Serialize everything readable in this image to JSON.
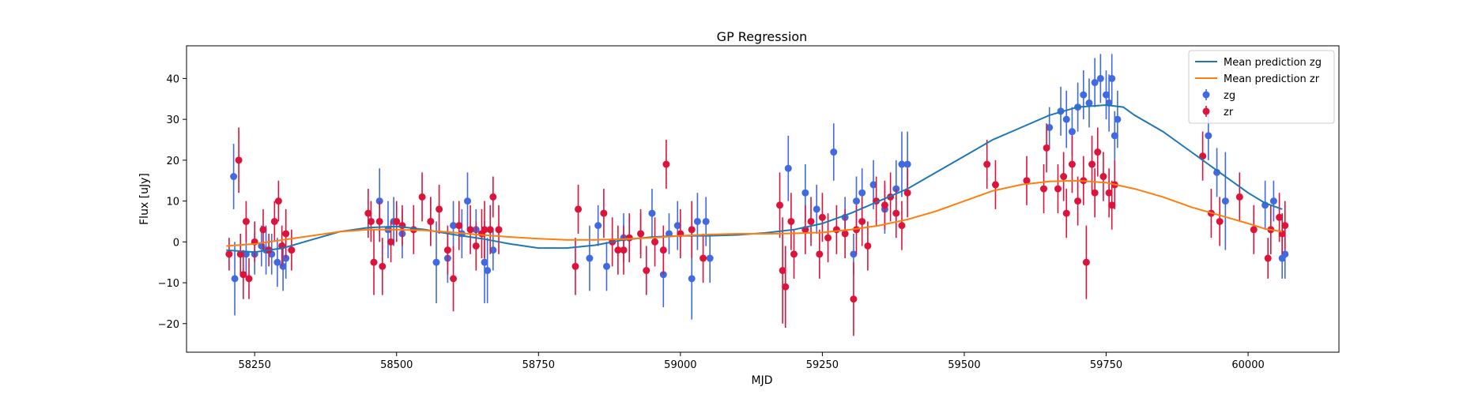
{
  "chart_data": {
    "type": "scatter",
    "title": "GP Regression",
    "xlabel": "MJD",
    "ylabel": "Flux [uJy]",
    "xlim": [
      58130,
      60160
    ],
    "ylim": [
      -27,
      48
    ],
    "xticks": [
      58250,
      58500,
      58750,
      59000,
      59250,
      59500,
      59750,
      60000
    ],
    "yticks": [
      -20,
      -10,
      0,
      10,
      20,
      30,
      40
    ],
    "grid": false,
    "legend_position": "top-right",
    "lines": [
      {
        "name": "Mean prediction zg",
        "color": "#1f77b4",
        "x": [
          58200,
          58250,
          58300,
          58350,
          58400,
          58450,
          58500,
          58550,
          58600,
          58650,
          58700,
          58750,
          58800,
          58850,
          58900,
          58950,
          59000,
          59050,
          59100,
          59150,
          59200,
          59250,
          59300,
          59350,
          59400,
          59450,
          59500,
          59550,
          59600,
          59650,
          59700,
          59750,
          59780,
          59800,
          59850,
          59900,
          59950,
          60000,
          60030,
          60060
        ],
        "y": [
          -2,
          -2.5,
          -1.5,
          0.5,
          2.5,
          3.5,
          3.8,
          3,
          1.8,
          0.8,
          -0.5,
          -1.5,
          -1.5,
          -0.8,
          0.5,
          1.2,
          1.5,
          1.5,
          1.7,
          2.2,
          3,
          4.5,
          7,
          10,
          13,
          17,
          21,
          25,
          28,
          31,
          33,
          33.5,
          33,
          31,
          27,
          22,
          17,
          12,
          9.5,
          8
        ]
      },
      {
        "name": "Mean prediction zr",
        "color": "#ff7f0e",
        "x": [
          58200,
          58250,
          58300,
          58350,
          58400,
          58450,
          58500,
          58550,
          58600,
          58650,
          58700,
          58750,
          58800,
          58850,
          58900,
          58950,
          59000,
          59050,
          59100,
          59150,
          59200,
          59250,
          59300,
          59350,
          59400,
          59450,
          59500,
          59550,
          59600,
          59650,
          59700,
          59750,
          59800,
          59850,
          59900,
          59950,
          60000,
          60030,
          60060
        ],
        "y": [
          -1,
          -0.5,
          0.5,
          1.5,
          2.5,
          3,
          3,
          2.8,
          2.3,
          1.7,
          1.2,
          0.8,
          0.5,
          0.5,
          0.7,
          1,
          1.5,
          1.8,
          2,
          2,
          2.1,
          2.3,
          3,
          4,
          5.5,
          7.5,
          10,
          12.5,
          14,
          14.8,
          15,
          14.5,
          13,
          11,
          8.5,
          6.5,
          4.5,
          3.2,
          2.5
        ]
      }
    ],
    "series": [
      {
        "name": "zg",
        "color": "#4169e1",
        "points": [
          [
            58213,
            16,
            8
          ],
          [
            58215,
            -9,
            9
          ],
          [
            58235,
            -3,
            6
          ],
          [
            58250,
            -3,
            5
          ],
          [
            58262,
            -1,
            5
          ],
          [
            58270,
            -2,
            6
          ],
          [
            58280,
            -3,
            5
          ],
          [
            58290,
            -5,
            6
          ],
          [
            58300,
            -6,
            6
          ],
          [
            58305,
            -4,
            5
          ],
          [
            58470,
            10,
            8
          ],
          [
            58485,
            3,
            7
          ],
          [
            58495,
            5,
            6
          ],
          [
            58510,
            2,
            6
          ],
          [
            58560,
            5,
            6
          ],
          [
            58570,
            -5,
            10
          ],
          [
            58590,
            -4,
            6
          ],
          [
            58600,
            4,
            6
          ],
          [
            58615,
            2,
            6
          ],
          [
            58625,
            10,
            7
          ],
          [
            58640,
            3,
            5
          ],
          [
            58655,
            -5,
            10
          ],
          [
            58660,
            -7,
            8
          ],
          [
            58670,
            -2,
            5
          ],
          [
            58840,
            -4,
            8
          ],
          [
            58855,
            4,
            5
          ],
          [
            58870,
            -6,
            6
          ],
          [
            58900,
            1,
            6
          ],
          [
            58930,
            2,
            5
          ],
          [
            58950,
            7,
            6
          ],
          [
            58970,
            -8,
            8
          ],
          [
            58980,
            2,
            5
          ],
          [
            58995,
            4,
            6
          ],
          [
            59020,
            -9,
            10
          ],
          [
            59030,
            5,
            7
          ],
          [
            59045,
            5,
            6
          ],
          [
            59052,
            -4,
            6
          ],
          [
            59190,
            18,
            8
          ],
          [
            59220,
            12,
            7
          ],
          [
            59240,
            8,
            6
          ],
          [
            59270,
            22,
            7
          ],
          [
            59290,
            6,
            5
          ],
          [
            59305,
            -3,
            5
          ],
          [
            59310,
            10,
            6
          ],
          [
            59320,
            12,
            6
          ],
          [
            59340,
            14,
            6
          ],
          [
            59360,
            8,
            6
          ],
          [
            59380,
            13,
            7
          ],
          [
            59390,
            19,
            8
          ],
          [
            59400,
            19,
            8
          ],
          [
            59650,
            28,
            5
          ],
          [
            59670,
            32,
            6
          ],
          [
            59680,
            30,
            7
          ],
          [
            59690,
            27,
            6
          ],
          [
            59700,
            33,
            6
          ],
          [
            59710,
            36,
            6
          ],
          [
            59720,
            34,
            6
          ],
          [
            59730,
            39,
            6
          ],
          [
            59740,
            40,
            6
          ],
          [
            59750,
            36,
            6
          ],
          [
            59755,
            34,
            7
          ],
          [
            59760,
            40,
            6
          ],
          [
            59765,
            26,
            6
          ],
          [
            59770,
            30,
            7
          ],
          [
            59930,
            26,
            6
          ],
          [
            59945,
            17,
            6
          ],
          [
            59960,
            10,
            12
          ],
          [
            60030,
            9,
            6
          ],
          [
            60045,
            10,
            5
          ],
          [
            60060,
            -4,
            5
          ],
          [
            60065,
            -3,
            6
          ]
        ]
      },
      {
        "name": "zr",
        "color": "#dc143c",
        "points": [
          [
            58205,
            -3,
            4
          ],
          [
            58222,
            20,
            8
          ],
          [
            58225,
            -3,
            5
          ],
          [
            58230,
            -8,
            6
          ],
          [
            58235,
            5,
            5
          ],
          [
            58240,
            -9,
            5
          ],
          [
            58250,
            0,
            5
          ],
          [
            58265,
            3,
            5
          ],
          [
            58275,
            -2,
            4
          ],
          [
            58285,
            5,
            5
          ],
          [
            58292,
            10,
            5
          ],
          [
            58298,
            -1,
            5
          ],
          [
            58305,
            2,
            6
          ],
          [
            58315,
            -2,
            5
          ],
          [
            58450,
            7,
            6
          ],
          [
            58455,
            5,
            5
          ],
          [
            58460,
            -5,
            8
          ],
          [
            58470,
            5,
            5
          ],
          [
            58475,
            -6,
            7
          ],
          [
            58490,
            0,
            5
          ],
          [
            58500,
            5,
            5
          ],
          [
            58510,
            4,
            5
          ],
          [
            58530,
            3,
            6
          ],
          [
            58545,
            11,
            6
          ],
          [
            58560,
            5,
            6
          ],
          [
            58575,
            8,
            6
          ],
          [
            58590,
            -2,
            6
          ],
          [
            58600,
            -9,
            8
          ],
          [
            58610,
            4,
            6
          ],
          [
            58630,
            3,
            6
          ],
          [
            58640,
            -1,
            6
          ],
          [
            58650,
            2,
            6
          ],
          [
            58655,
            3,
            7
          ],
          [
            58665,
            3,
            6
          ],
          [
            58670,
            11,
            5
          ],
          [
            58680,
            3,
            6
          ],
          [
            58815,
            -6,
            7
          ],
          [
            58820,
            8,
            6
          ],
          [
            58865,
            7,
            6
          ],
          [
            58880,
            0,
            6
          ],
          [
            58890,
            -2,
            6
          ],
          [
            58900,
            -2,
            6
          ],
          [
            58910,
            1,
            6
          ],
          [
            58930,
            2,
            6
          ],
          [
            58940,
            -7,
            6
          ],
          [
            58955,
            0,
            6
          ],
          [
            58970,
            -2,
            6
          ],
          [
            58975,
            19,
            6
          ],
          [
            59000,
            2,
            6
          ],
          [
            59020,
            3,
            7
          ],
          [
            59040,
            -4,
            6
          ],
          [
            59175,
            9,
            8
          ],
          [
            59180,
            -7,
            13
          ],
          [
            59185,
            -11,
            10
          ],
          [
            59195,
            5,
            7
          ],
          [
            59200,
            -3,
            6
          ],
          [
            59220,
            3,
            6
          ],
          [
            59230,
            5,
            6
          ],
          [
            59245,
            -3,
            6
          ],
          [
            59250,
            6,
            6
          ],
          [
            59260,
            1,
            6
          ],
          [
            59275,
            3,
            6
          ],
          [
            59290,
            2,
            6
          ],
          [
            59305,
            -14,
            9
          ],
          [
            59310,
            3,
            6
          ],
          [
            59320,
            5,
            6
          ],
          [
            59330,
            -1,
            6
          ],
          [
            59345,
            10,
            6
          ],
          [
            59360,
            9,
            6
          ],
          [
            59370,
            11,
            6
          ],
          [
            59380,
            7,
            6
          ],
          [
            59390,
            4,
            6
          ],
          [
            59400,
            12,
            6
          ],
          [
            59540,
            19,
            6
          ],
          [
            59555,
            14,
            6
          ],
          [
            59610,
            15,
            6
          ],
          [
            59640,
            13,
            6
          ],
          [
            59645,
            23,
            6
          ],
          [
            59665,
            13,
            6
          ],
          [
            59675,
            16,
            6
          ],
          [
            59680,
            7,
            6
          ],
          [
            59690,
            19,
            7
          ],
          [
            59700,
            10,
            6
          ],
          [
            59710,
            15,
            6
          ],
          [
            59715,
            -5,
            9
          ],
          [
            59725,
            19,
            7
          ],
          [
            59730,
            12,
            6
          ],
          [
            59735,
            22,
            6
          ],
          [
            59745,
            16,
            6
          ],
          [
            59755,
            12,
            6
          ],
          [
            59760,
            9,
            6
          ],
          [
            59765,
            14,
            6
          ],
          [
            59920,
            21,
            6
          ],
          [
            59935,
            7,
            6
          ],
          [
            59950,
            5,
            6
          ],
          [
            59985,
            11,
            6
          ],
          [
            60010,
            3,
            6
          ],
          [
            60035,
            -4,
            5
          ],
          [
            60040,
            3,
            6
          ],
          [
            60055,
            6,
            6
          ],
          [
            60060,
            2,
            5
          ],
          [
            60065,
            4,
            6
          ]
        ]
      }
    ]
  }
}
